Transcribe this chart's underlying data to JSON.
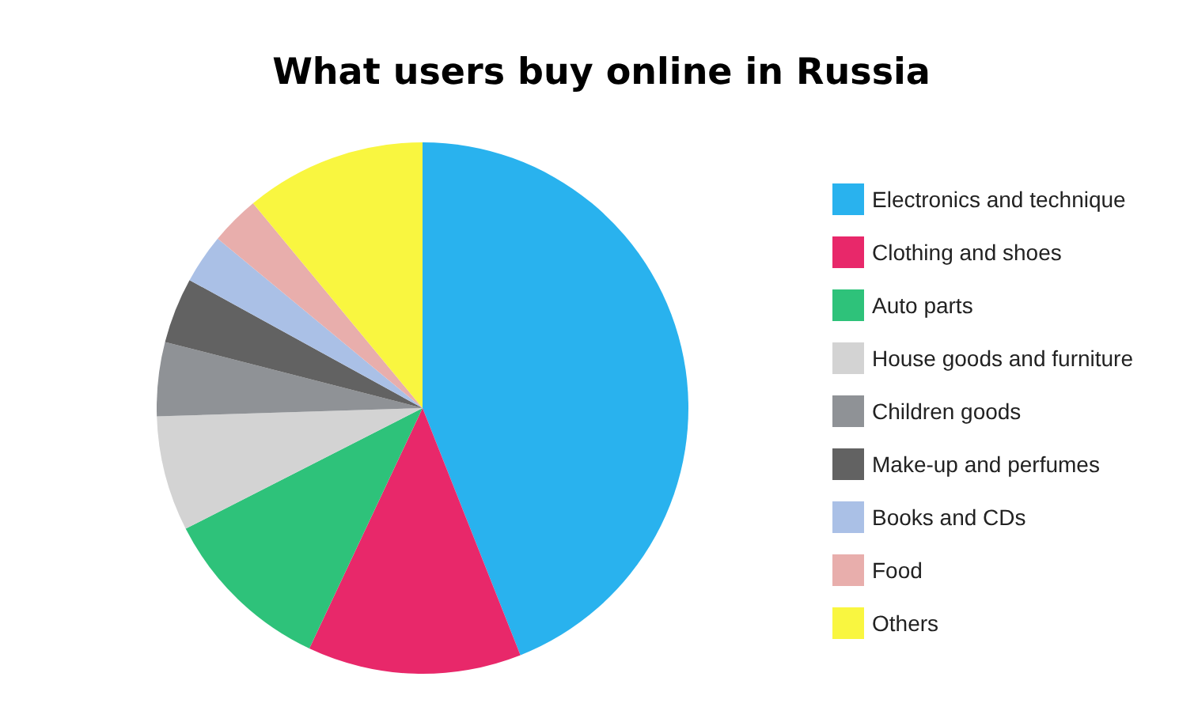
{
  "chart_data": {
    "type": "pie",
    "title": "What users buy online in Russia",
    "categories": [
      "Electronics and technique",
      "Clothing and shoes",
      "Auto parts",
      "House goods and furniture",
      "Children goods",
      "Make-up and perfumes",
      "Books and CDs",
      "Food",
      "Others"
    ],
    "values": [
      44,
      13,
      10.5,
      7,
      4.5,
      4,
      3,
      3,
      11
    ],
    "colors": [
      "#29b2ee",
      "#e8286a",
      "#2ec27a",
      "#d3d3d3",
      "#8f9296",
      "#626262",
      "#aac0e6",
      "#e8aeac",
      "#f9f640"
    ],
    "legend": "right"
  }
}
